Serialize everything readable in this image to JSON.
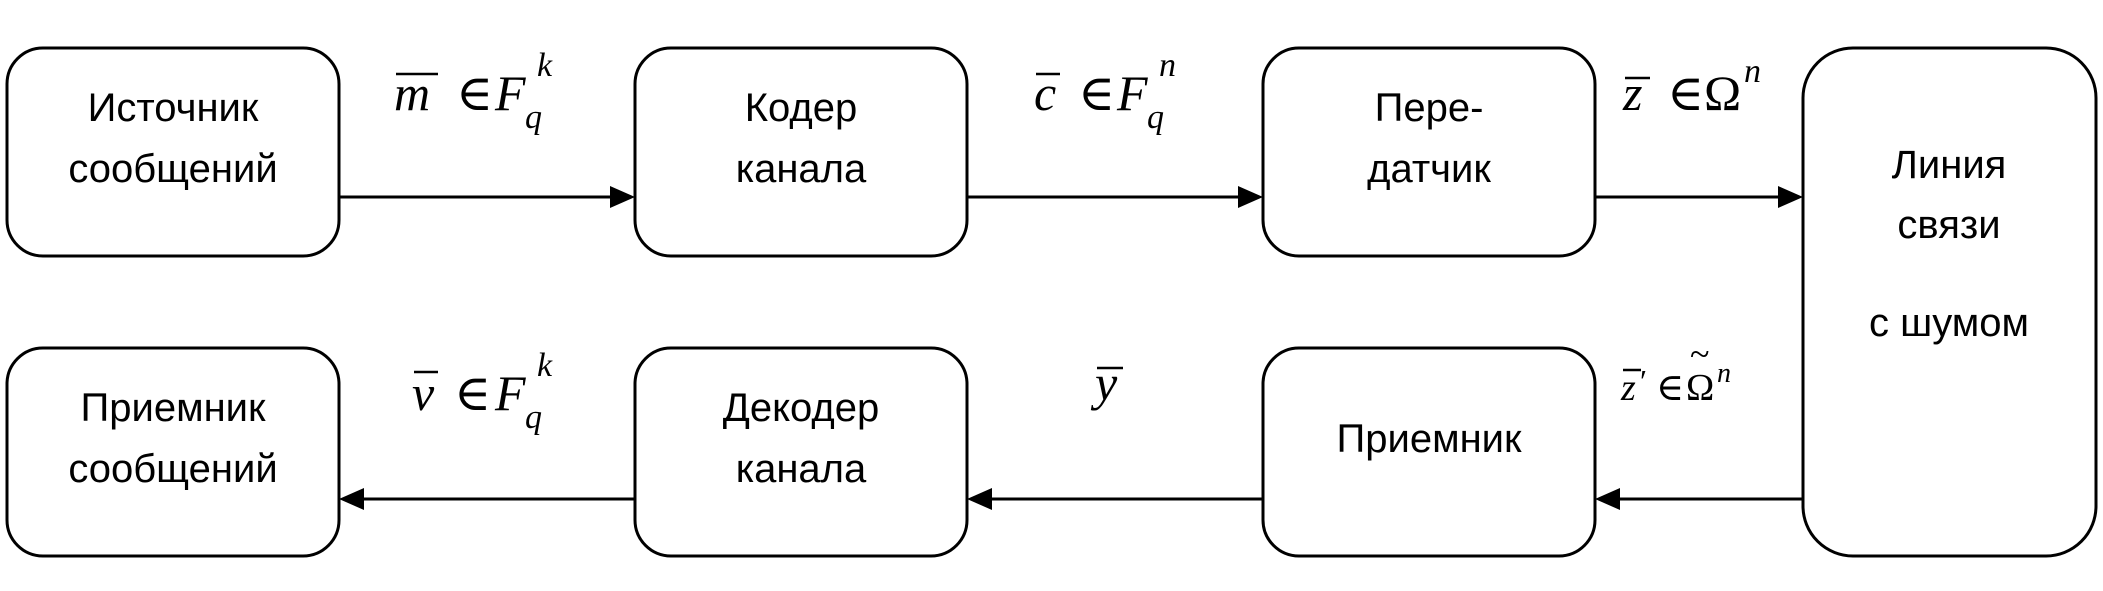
{
  "colors": {
    "stroke": "#000000",
    "background": "#ffffff"
  },
  "blocks": {
    "source": {
      "line1": "Источник",
      "line2": "сообщений"
    },
    "encoder": {
      "line1": "Кодер",
      "line2": "канала"
    },
    "transmitter": {
      "line1": "Пере-",
      "line2": "датчик"
    },
    "channel": {
      "line1": "Линия",
      "line2": "связи",
      "line3": "с шумом"
    },
    "receiver": {
      "line1": "Приемник"
    },
    "decoder": {
      "line1": "Декодер",
      "line2": "канала"
    },
    "destination": {
      "line1": "Приемник",
      "line2": "сообщений"
    }
  },
  "signals": {
    "m": {
      "var": "m",
      "rel": "∈",
      "set": "F",
      "sub": "q",
      "sup": "k"
    },
    "c": {
      "var": "c",
      "rel": "∈",
      "set": "F",
      "sub": "q",
      "sup": "n"
    },
    "z": {
      "var": "z",
      "rel": "∈",
      "set": "Ω",
      "sup": "n"
    },
    "zp": {
      "var": "z",
      "prime": "′",
      "rel": "∈",
      "set": "Ω",
      "tilde": "~",
      "sup": "n"
    },
    "y": {
      "var": "y"
    },
    "v": {
      "var": "v",
      "rel": "∈",
      "set": "F",
      "sub": "q",
      "sup": "k"
    }
  }
}
